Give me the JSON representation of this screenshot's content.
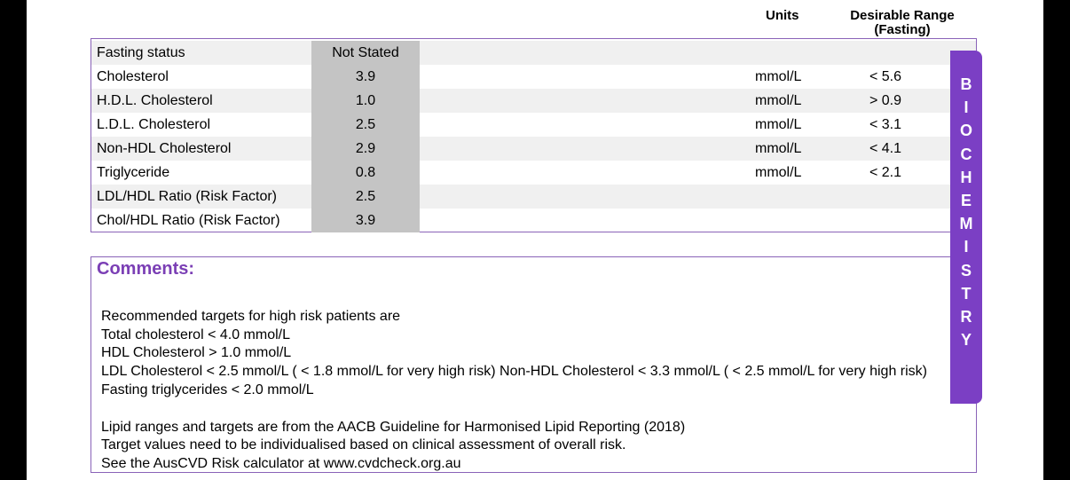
{
  "header": {
    "units": "Units",
    "range_line1": "Desirable Range",
    "range_line2": "(Fasting)"
  },
  "rows": [
    {
      "name": "Fasting status",
      "value": "Not Stated",
      "unit": "",
      "range": ""
    },
    {
      "name": "Cholesterol",
      "value": "3.9",
      "unit": "mmol/L",
      "range": "< 5.6"
    },
    {
      "name": "H.D.L. Cholesterol",
      "value": "1.0",
      "unit": "mmol/L",
      "range": "> 0.9"
    },
    {
      "name": "L.D.L. Cholesterol",
      "value": "2.5",
      "unit": "mmol/L",
      "range": "< 3.1"
    },
    {
      "name": "Non-HDL Cholesterol",
      "value": "2.9",
      "unit": "mmol/L",
      "range": "< 4.1"
    },
    {
      "name": "Triglyceride",
      "value": "0.8",
      "unit": "mmol/L",
      "range": "< 2.1"
    },
    {
      "name": "LDL/HDL Ratio (Risk Factor)",
      "value": "2.5",
      "unit": "",
      "range": ""
    },
    {
      "name": "Chol/HDL Ratio (Risk Factor)",
      "value": "3.9",
      "unit": "",
      "range": ""
    }
  ],
  "comments": {
    "title": "Comments:",
    "lines": [
      "Recommended targets for high risk patients are",
      "Total cholesterol < 4.0 mmol/L",
      "HDL Cholesterol > 1.0 mmol/L",
      "LDL Cholesterol < 2.5 mmol/L ( < 1.8 mmol/L for very high risk) Non-HDL Cholesterol < 3.3 mmol/L ( < 2.5 mmol/L for very high risk) Fasting triglycerides < 2.0 mmol/L",
      "",
      "Lipid ranges and targets are from the AACB Guideline for Harmonised Lipid Reporting (2018)",
      "Target values need to be individualised based on clinical assessment of overall risk.",
      "See the AusCVD Risk calculator at www.cvdcheck.org.au"
    ]
  },
  "side_tab": {
    "label": "BIOCHEMISTRY",
    "color": "#7b3fc4"
  },
  "colors": {
    "border": "#8a63b8",
    "value_bg": "#c4c4c4",
    "alt_row_bg": "#f0f0f0",
    "comment_title": "#7b3fb5"
  }
}
